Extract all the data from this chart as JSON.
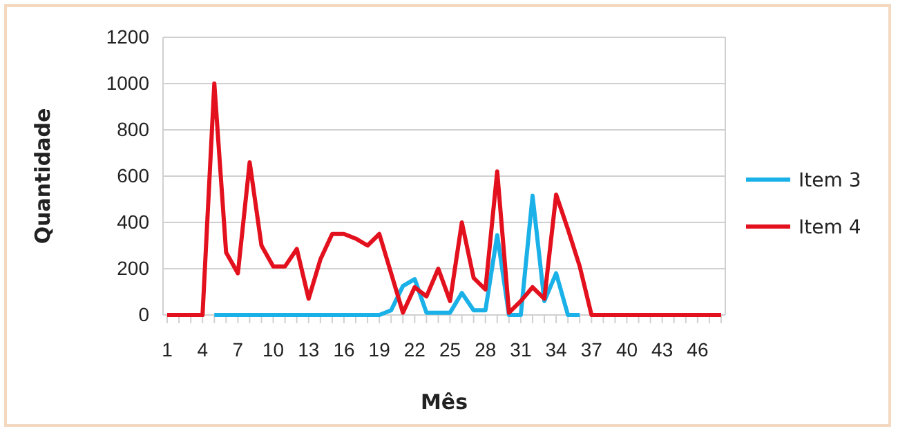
{
  "chart_data": {
    "type": "line",
    "xlabel": "Mês",
    "ylabel": "Quantidade",
    "categories": [
      "1",
      null,
      null,
      "4",
      null,
      null,
      "7",
      null,
      null,
      "10",
      null,
      null,
      "13",
      null,
      null,
      "16",
      null,
      null,
      "19",
      null,
      null,
      "22",
      null,
      null,
      "25",
      null,
      null,
      "28",
      null,
      null,
      "31",
      null,
      null,
      "34",
      null,
      null,
      "37",
      null,
      null,
      "40",
      null,
      null,
      "43",
      null,
      null,
      "46",
      null,
      null
    ],
    "series": [
      {
        "name": "Item 3",
        "color": "#1ab0e8",
        "values": [
          null,
          null,
          null,
          null,
          0,
          0,
          0,
          0,
          0,
          0,
          0,
          0,
          0,
          0,
          0,
          0,
          0,
          0,
          0,
          20,
          125,
          155,
          10,
          10,
          10,
          95,
          20,
          20,
          345,
          0,
          0,
          515,
          60,
          180,
          0,
          0,
          null,
          null,
          null,
          null,
          null,
          null,
          null,
          null,
          null,
          null,
          null,
          null
        ]
      },
      {
        "name": "Item 4",
        "color": "#e3101d",
        "values": [
          0,
          0,
          0,
          0,
          1000,
          270,
          180,
          660,
          300,
          210,
          210,
          285,
          70,
          240,
          350,
          350,
          330,
          300,
          350,
          180,
          10,
          120,
          80,
          200,
          60,
          400,
          160,
          110,
          620,
          10,
          60,
          120,
          70,
          520,
          370,
          210,
          0,
          0,
          0,
          0,
          0,
          0,
          0,
          0,
          0,
          0,
          0,
          0
        ]
      }
    ],
    "ylim": [
      0,
      1200
    ],
    "yticks": [
      0,
      200,
      400,
      600,
      800,
      1000,
      1200
    ],
    "grid": "y",
    "legend": "right"
  }
}
